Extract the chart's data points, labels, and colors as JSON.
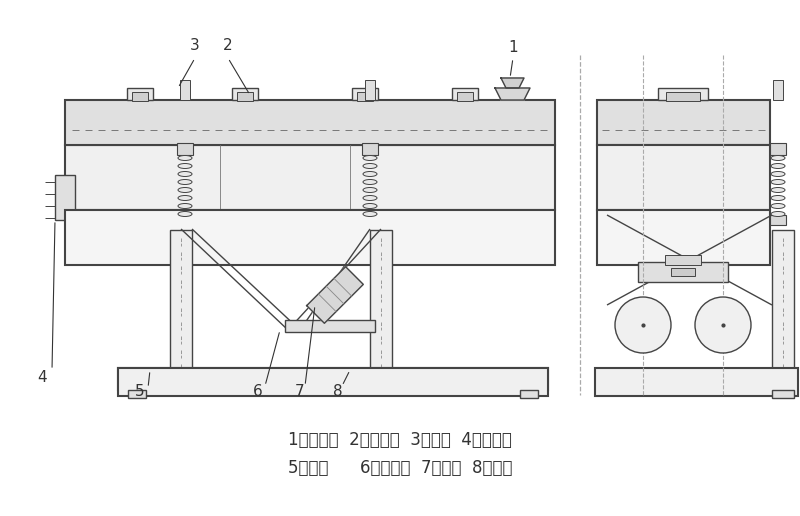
{
  "bg_color": "#ffffff",
  "line_color": "#444444",
  "text_color": "#333333",
  "legend_line1": "1、进料口  2、筛上盖  3、弹簧  4、出料口",
  "legend_line2": "5、筛箱      6、电机架  7、电机  8、支架",
  "figsize": [
    8.0,
    5.16
  ],
  "dpi": 100
}
